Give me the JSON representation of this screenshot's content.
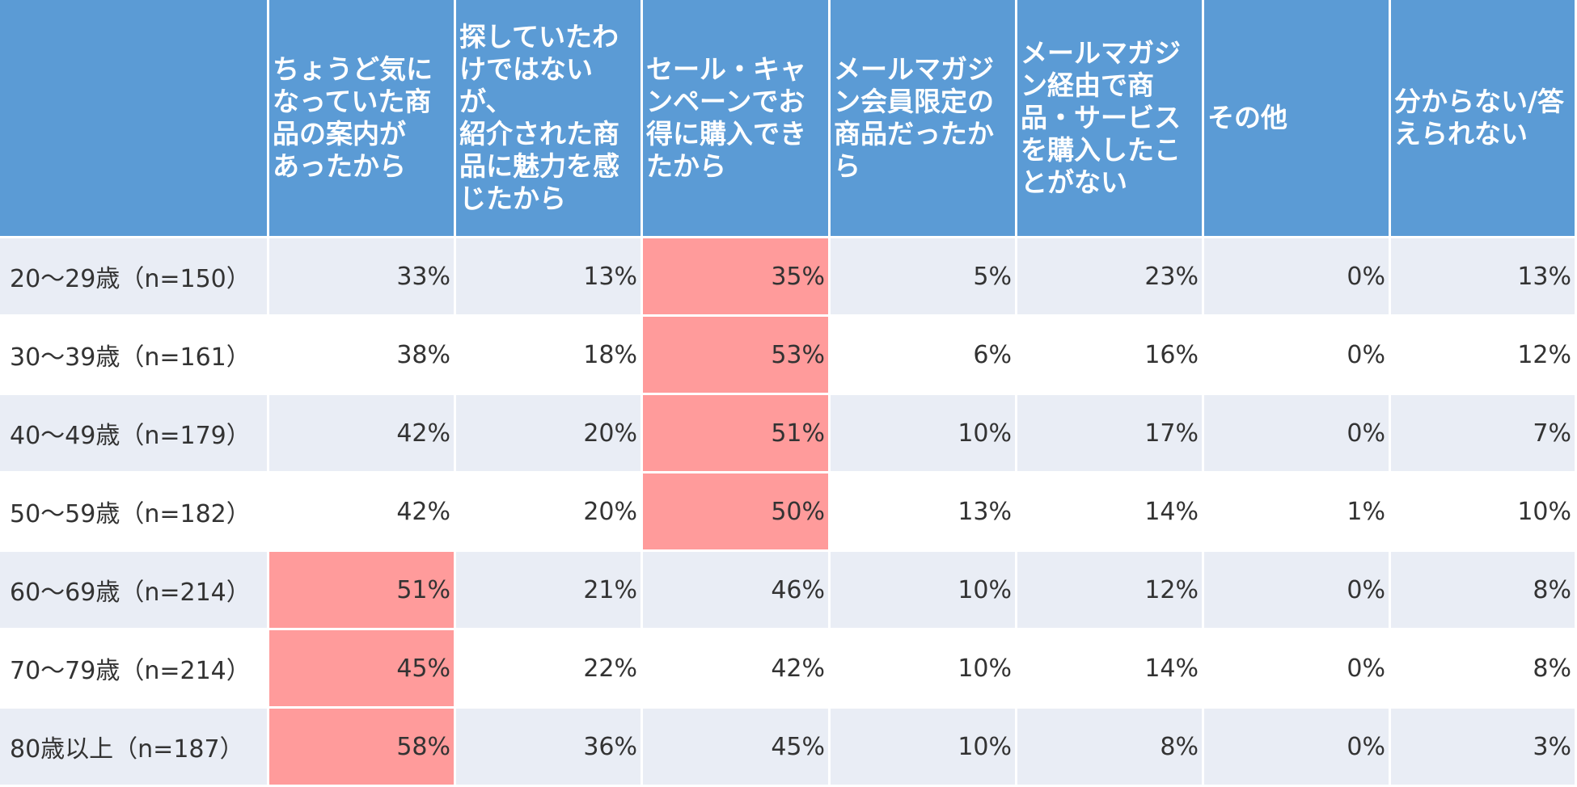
{
  "colors": {
    "header_bg": "#5b9bd5",
    "row_alt_bg": "#e9edf5",
    "highlight": "#ff9b9b"
  },
  "chart_data": {
    "type": "table",
    "corner": "",
    "columns": [
      "ちょうど気に\nなっていた商\n品の案内が\nあったから",
      "探していたわ\nけではないが、\n紹介された商\n品に魅力を感\nじたから",
      "セール・キャ\nンペーンでお\n得に購入でき\nたから",
      "メールマガジ\nン会員限定の\n商品だったか\nら",
      "メールマガジ\nン経由で商\n品・サービス\nを購入したこ\nとがない",
      "その他",
      "分からない/答\nえられない"
    ],
    "rows": [
      {
        "label": "20〜29歳（n=150）",
        "cells": [
          "33%",
          "13%",
          "35%",
          "5%",
          "23%",
          "0%",
          "13%"
        ],
        "highlight": [
          2
        ]
      },
      {
        "label": "30〜39歳（n=161）",
        "cells": [
          "38%",
          "18%",
          "53%",
          "6%",
          "16%",
          "0%",
          "12%"
        ],
        "highlight": [
          2
        ]
      },
      {
        "label": "40〜49歳（n=179）",
        "cells": [
          "42%",
          "20%",
          "51%",
          "10%",
          "17%",
          "0%",
          "7%"
        ],
        "highlight": [
          2
        ]
      },
      {
        "label": "50〜59歳（n=182）",
        "cells": [
          "42%",
          "20%",
          "50%",
          "13%",
          "14%",
          "1%",
          "10%"
        ],
        "highlight": [
          2
        ]
      },
      {
        "label": "60〜69歳（n=214）",
        "cells": [
          "51%",
          "21%",
          "46%",
          "10%",
          "12%",
          "0%",
          "8%"
        ],
        "highlight": [
          0
        ]
      },
      {
        "label": "70〜79歳（n=214）",
        "cells": [
          "45%",
          "22%",
          "42%",
          "10%",
          "14%",
          "0%",
          "8%"
        ],
        "highlight": [
          0
        ]
      },
      {
        "label": "80歳以上（n=187）",
        "cells": [
          "58%",
          "36%",
          "45%",
          "10%",
          "8%",
          "0%",
          "3%"
        ],
        "highlight": [
          0
        ]
      }
    ]
  }
}
